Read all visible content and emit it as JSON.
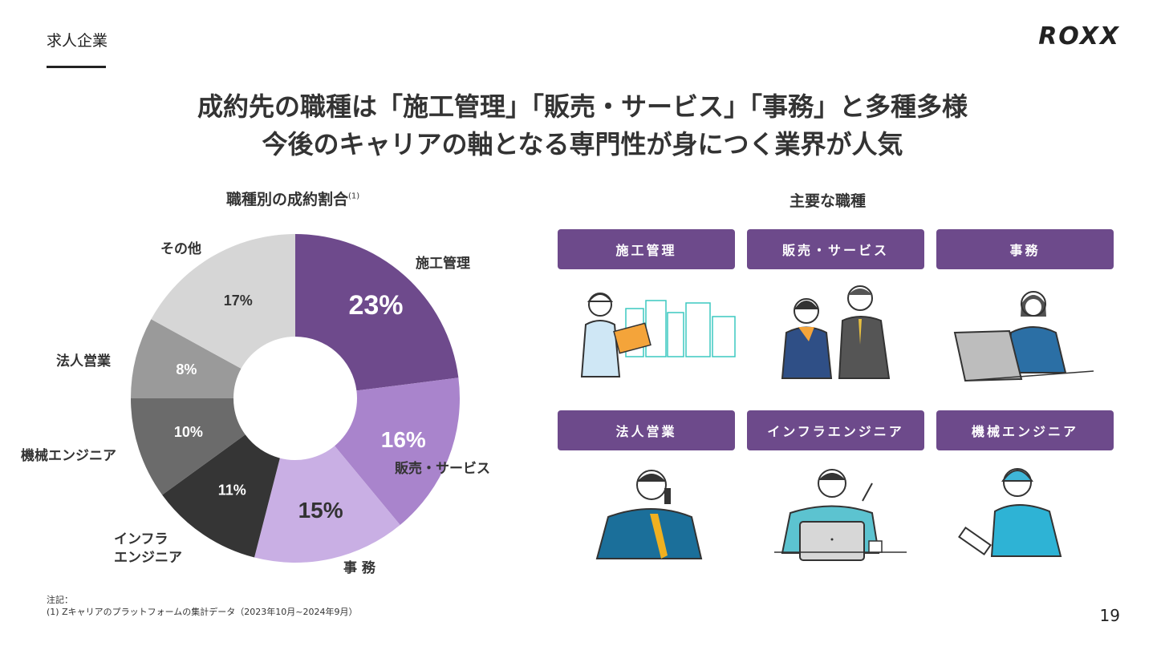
{
  "header": {
    "section": "求人企業",
    "logo": "ROXX"
  },
  "headline": {
    "line1": "成約先の職種は「施工管理」「販売・サービス」「事務」と多種多様",
    "line2": "今後のキャリアの軸となる専門性が身につく業界が人気"
  },
  "chart_data": {
    "type": "pie",
    "variant": "donut",
    "title": "職種別の成約割合",
    "title_note": "(1)",
    "categories": [
      "施工管理",
      "販売・サービス",
      "事 務",
      "インフラエンジニア",
      "機械エンジニア",
      "法人営業",
      "その他"
    ],
    "values": [
      23,
      16,
      15,
      11,
      10,
      8,
      17
    ],
    "value_labels": [
      "23%",
      "16%",
      "15%",
      "11%",
      "10%",
      "8%",
      "17%"
    ],
    "colors": [
      "#6e4a8c",
      "#a984cc",
      "#c9afe4",
      "#353535",
      "#6b6b6b",
      "#9a9a9a",
      "#d6d6d6"
    ],
    "label_colors": [
      "#ffffff",
      "#ffffff",
      "#333333",
      "#ffffff",
      "#ffffff",
      "#ffffff",
      "#333333"
    ],
    "category_labels": {
      "c0": "施工管理",
      "c1": "販売・サービス",
      "c2": "事 務",
      "c3a": "インフラ",
      "c3b": "エンジニア",
      "c4": "機械エンジニア",
      "c5": "法人営業",
      "c6": "その他"
    },
    "start": "top",
    "direction": "clockwise"
  },
  "roles": {
    "title": "主要な職種",
    "items": [
      {
        "label": "施工管理",
        "icon": "construction-manager-illustration"
      },
      {
        "label": "販売・サービス",
        "icon": "sales-staff-illustration"
      },
      {
        "label": "事務",
        "icon": "office-worker-illustration"
      },
      {
        "label": "法人営業",
        "icon": "corporate-sales-illustration"
      },
      {
        "label": "インフラエンジニア",
        "icon": "infra-engineer-illustration"
      },
      {
        "label": "機械エンジニア",
        "icon": "mechanical-engineer-illustration"
      }
    ],
    "accent": "#6d4a8b"
  },
  "notes": {
    "title": "注記：",
    "line1": "(1) Zキャリアのプラットフォームの集計データ（2023年10月~2024年9月）"
  },
  "page": "19"
}
